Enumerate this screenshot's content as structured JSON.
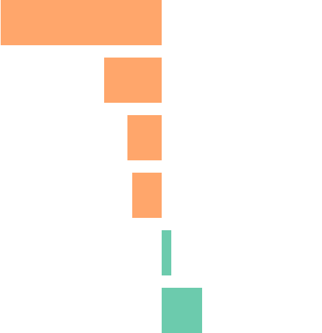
{
  "chart_data": {
    "type": "diverging-bar",
    "values": [
      -235,
      -84,
      -50,
      -43,
      14,
      59
    ],
    "negative_color": "#ffa66b",
    "positive_color": "#6ccbad",
    "xlim": [
      -236,
      234
    ]
  }
}
